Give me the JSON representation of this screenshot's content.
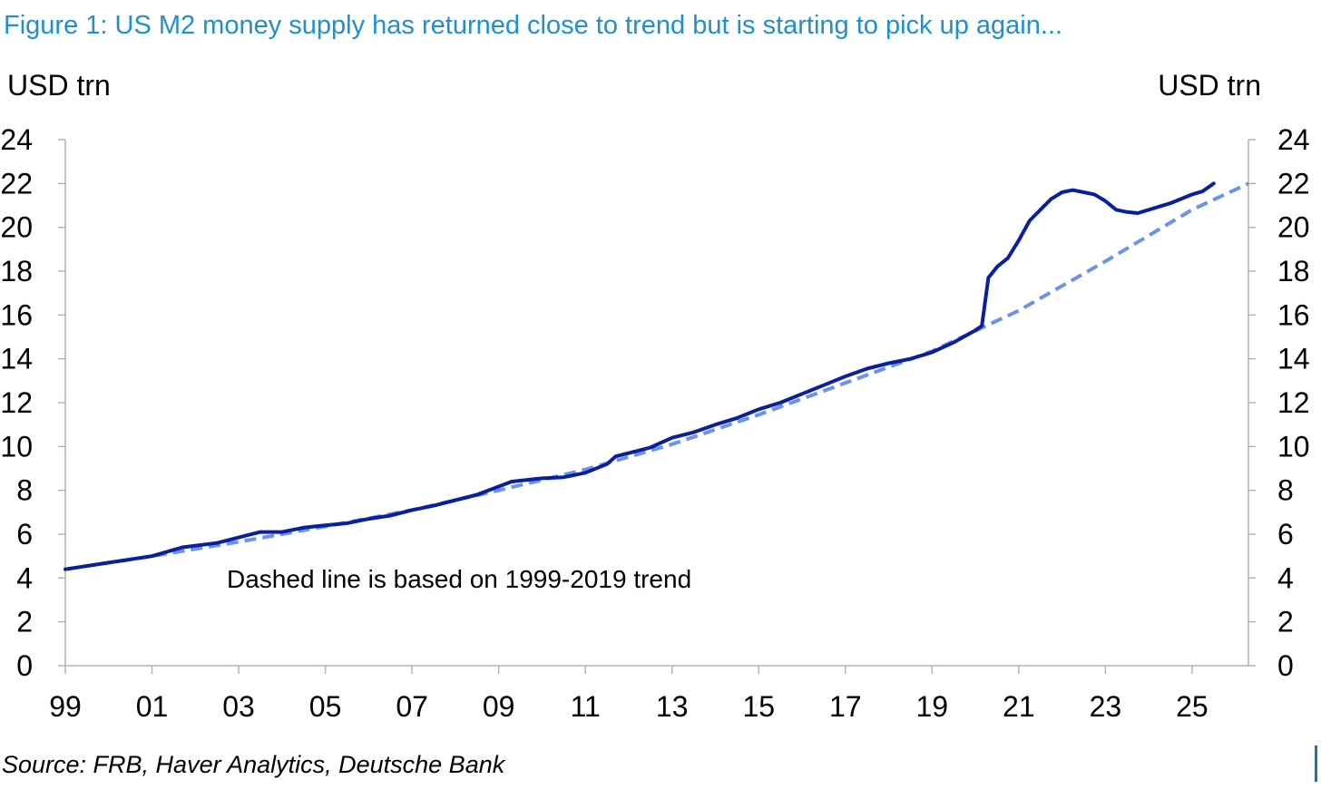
{
  "figure": {
    "title": "Figure 1: US M2 money supply has returned close to trend but is starting to pick up again...",
    "source": "Source: FRB, Haver Analytics, Deutsche Bank",
    "colors": {
      "title": "#1f8fd0",
      "m2": "#0a1f9e",
      "trend": "#6d93e6",
      "axis": "#b3b3b3"
    }
  },
  "chart_data": {
    "type": "line",
    "ylabel_left": "USD trn",
    "ylabel_right": "USD trn",
    "ylim": [
      0,
      24
    ],
    "yticks": [
      0,
      2,
      4,
      6,
      8,
      10,
      12,
      14,
      16,
      18,
      20,
      22,
      24
    ],
    "xlim": [
      1999,
      2026.3
    ],
    "xticks": [
      {
        "value": 1999,
        "label": "99"
      },
      {
        "value": 2001,
        "label": "01"
      },
      {
        "value": 2003,
        "label": "03"
      },
      {
        "value": 2005,
        "label": "05"
      },
      {
        "value": 2007,
        "label": "07"
      },
      {
        "value": 2009,
        "label": "09"
      },
      {
        "value": 2011,
        "label": "11"
      },
      {
        "value": 2013,
        "label": "13"
      },
      {
        "value": 2015,
        "label": "15"
      },
      {
        "value": 2017,
        "label": "17"
      },
      {
        "value": 2019,
        "label": "19"
      },
      {
        "value": 2021,
        "label": "21"
      },
      {
        "value": 2023,
        "label": "23"
      },
      {
        "value": 2025,
        "label": "25"
      }
    ],
    "annotation": "Dashed line is based on 1999-2019 trend",
    "series": [
      {
        "name": "US M2 money supply",
        "style": "solid",
        "points": [
          [
            1999.0,
            4.4
          ],
          [
            2000.0,
            4.7
          ],
          [
            2001.0,
            5.0
          ],
          [
            2001.7,
            5.4
          ],
          [
            2002.5,
            5.6
          ],
          [
            2003.0,
            5.85
          ],
          [
            2003.5,
            6.1
          ],
          [
            2004.0,
            6.1
          ],
          [
            2004.5,
            6.3
          ],
          [
            2005.0,
            6.4
          ],
          [
            2005.5,
            6.5
          ],
          [
            2006.0,
            6.7
          ],
          [
            2006.5,
            6.85
          ],
          [
            2007.0,
            7.1
          ],
          [
            2007.5,
            7.3
          ],
          [
            2008.0,
            7.55
          ],
          [
            2008.5,
            7.8
          ],
          [
            2008.9,
            8.1
          ],
          [
            2009.3,
            8.4
          ],
          [
            2010.0,
            8.55
          ],
          [
            2010.5,
            8.6
          ],
          [
            2011.0,
            8.8
          ],
          [
            2011.5,
            9.2
          ],
          [
            2011.7,
            9.55
          ],
          [
            2012.0,
            9.7
          ],
          [
            2012.5,
            9.95
          ],
          [
            2013.0,
            10.4
          ],
          [
            2013.5,
            10.65
          ],
          [
            2014.0,
            11.0
          ],
          [
            2014.5,
            11.3
          ],
          [
            2015.0,
            11.7
          ],
          [
            2015.5,
            12.0
          ],
          [
            2016.0,
            12.4
          ],
          [
            2016.5,
            12.8
          ],
          [
            2017.0,
            13.2
          ],
          [
            2017.5,
            13.55
          ],
          [
            2018.0,
            13.8
          ],
          [
            2018.5,
            14.0
          ],
          [
            2019.0,
            14.3
          ],
          [
            2019.5,
            14.75
          ],
          [
            2020.0,
            15.3
          ],
          [
            2020.15,
            15.5
          ],
          [
            2020.3,
            17.7
          ],
          [
            2020.5,
            18.2
          ],
          [
            2020.75,
            18.6
          ],
          [
            2021.0,
            19.4
          ],
          [
            2021.25,
            20.3
          ],
          [
            2021.5,
            20.8
          ],
          [
            2021.75,
            21.3
          ],
          [
            2022.0,
            21.6
          ],
          [
            2022.25,
            21.7
          ],
          [
            2022.5,
            21.6
          ],
          [
            2022.75,
            21.5
          ],
          [
            2023.0,
            21.2
          ],
          [
            2023.25,
            20.8
          ],
          [
            2023.5,
            20.7
          ],
          [
            2023.75,
            20.65
          ],
          [
            2024.0,
            20.8
          ],
          [
            2024.5,
            21.1
          ],
          [
            2025.0,
            21.5
          ],
          [
            2025.25,
            21.65
          ],
          [
            2025.5,
            22.0
          ]
        ]
      },
      {
        "name": "1999-2019 trend",
        "style": "dashed",
        "points": [
          [
            1999.0,
            4.4
          ],
          [
            2001.0,
            5.0
          ],
          [
            2003.0,
            5.65
          ],
          [
            2005.0,
            6.35
          ],
          [
            2007.0,
            7.1
          ],
          [
            2009.0,
            8.0
          ],
          [
            2011.0,
            8.95
          ],
          [
            2013.0,
            10.1
          ],
          [
            2015.0,
            11.45
          ],
          [
            2017.0,
            12.9
          ],
          [
            2019.0,
            14.35
          ],
          [
            2021.0,
            16.2
          ],
          [
            2023.0,
            18.45
          ],
          [
            2025.0,
            20.8
          ],
          [
            2026.3,
            22.0
          ]
        ]
      }
    ]
  }
}
